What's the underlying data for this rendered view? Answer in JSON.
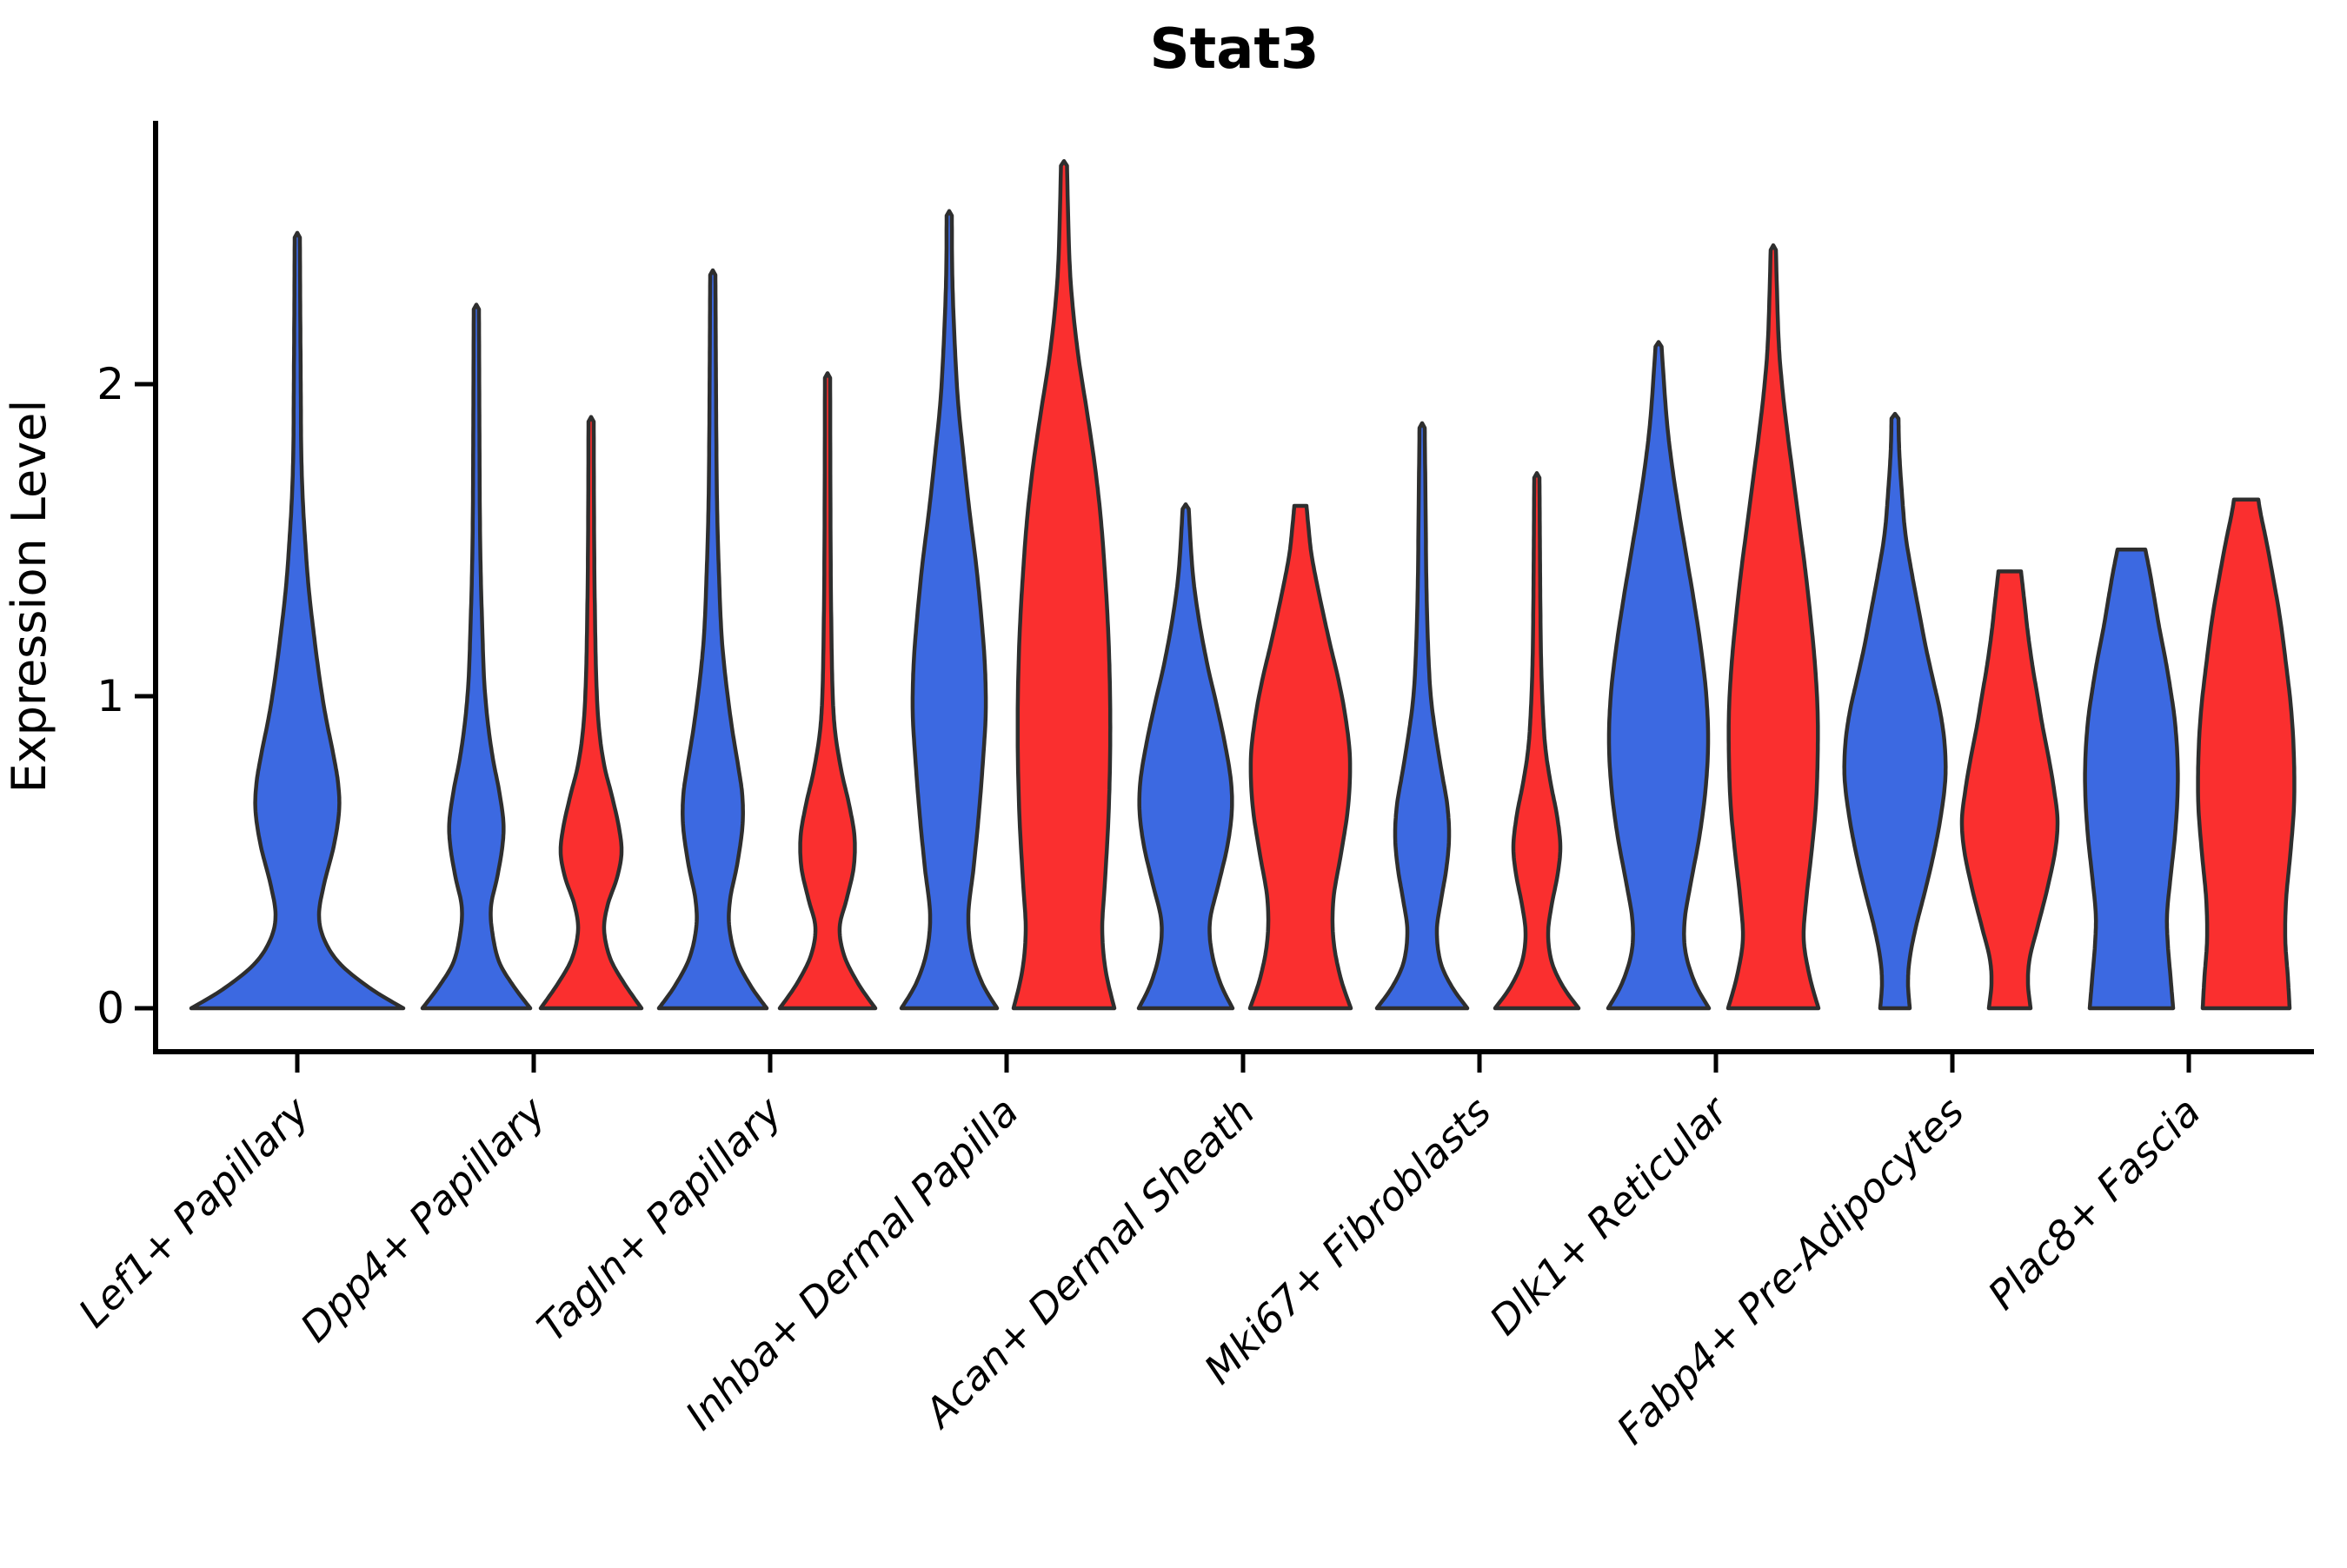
{
  "chart_data": {
    "type": "violin",
    "title": "Stat3",
    "ylabel": "Expression Level",
    "xlabel": "",
    "yticks": [
      "0",
      "1",
      "2"
    ],
    "ytick_values": [
      0,
      1,
      2
    ],
    "ylim": [
      -0.14,
      2.85
    ],
    "grid": false,
    "legend": "none",
    "categories": [
      "Lef1+ Papillary",
      "Dpp4+ Papillary",
      "Tagln+ Papillary",
      "Inhba+ Dermal Papilla",
      "Acan+ Dermal Sheath",
      "Mki67+ Fibroblasts",
      "Dlk1+ Reticular",
      "Fabp4+ Pre-Adipocytes",
      "Plac8+ Fascia"
    ],
    "groups": [
      {
        "name": "blue",
        "color": "#3C69E1"
      },
      {
        "name": "red",
        "color": "#FA2F2F"
      }
    ],
    "outline_color": "#2E2E2E",
    "axis_color": "#000000",
    "note": "profile = [expression_value, half_width_px]; max = violin top expression; dx = horizontal offset from category tick",
    "violins": [
      {
        "category": 0,
        "group": "blue",
        "dx": 0,
        "max": 2.47,
        "profile": [
          [
            0,
            122
          ],
          [
            0.06,
            86
          ],
          [
            0.14,
            50
          ],
          [
            0.22,
            31
          ],
          [
            0.3,
            25
          ],
          [
            0.4,
            31
          ],
          [
            0.52,
            42
          ],
          [
            0.63,
            48
          ],
          [
            0.72,
            47
          ],
          [
            0.82,
            41
          ],
          [
            0.93,
            33
          ],
          [
            1.05,
            26
          ],
          [
            1.2,
            19
          ],
          [
            1.35,
            13
          ],
          [
            1.5,
            9
          ],
          [
            1.65,
            6
          ],
          [
            1.8,
            4.5
          ],
          [
            2.0,
            4
          ],
          [
            2.2,
            3.5
          ],
          [
            2.47,
            3
          ]
        ]
      },
      {
        "category": 1,
        "group": "blue",
        "dx": -66,
        "max": 2.24,
        "profile": [
          [
            0,
            62
          ],
          [
            0.07,
            43
          ],
          [
            0.15,
            26
          ],
          [
            0.25,
            18
          ],
          [
            0.33,
            17
          ],
          [
            0.42,
            24
          ],
          [
            0.52,
            30
          ],
          [
            0.6,
            31
          ],
          [
            0.7,
            26
          ],
          [
            0.8,
            19
          ],
          [
            0.92,
            13
          ],
          [
            1.05,
            9
          ],
          [
            1.2,
            7
          ],
          [
            1.4,
            5
          ],
          [
            1.6,
            4
          ],
          [
            1.9,
            3.5
          ],
          [
            2.24,
            3
          ]
        ]
      },
      {
        "category": 1,
        "group": "red",
        "dx": 66,
        "max": 1.88,
        "profile": [
          [
            0,
            58
          ],
          [
            0.08,
            38
          ],
          [
            0.16,
            22
          ],
          [
            0.25,
            15
          ],
          [
            0.33,
            19
          ],
          [
            0.42,
            30
          ],
          [
            0.5,
            35
          ],
          [
            0.58,
            32
          ],
          [
            0.68,
            24
          ],
          [
            0.78,
            15
          ],
          [
            0.9,
            9
          ],
          [
            1.05,
            6
          ],
          [
            1.25,
            4.5
          ],
          [
            1.5,
            3.5
          ],
          [
            1.88,
            3
          ]
        ]
      },
      {
        "category": 2,
        "group": "blue",
        "dx": -66,
        "max": 2.35,
        "profile": [
          [
            0,
            62
          ],
          [
            0.07,
            44
          ],
          [
            0.16,
            27
          ],
          [
            0.26,
            19
          ],
          [
            0.35,
            20
          ],
          [
            0.46,
            28
          ],
          [
            0.58,
            34
          ],
          [
            0.68,
            34
          ],
          [
            0.78,
            29
          ],
          [
            0.9,
            22
          ],
          [
            1.05,
            15
          ],
          [
            1.2,
            10
          ],
          [
            1.4,
            7
          ],
          [
            1.6,
            5
          ],
          [
            1.85,
            4
          ],
          [
            2.1,
            3.5
          ],
          [
            2.35,
            3
          ]
        ]
      },
      {
        "category": 2,
        "group": "red",
        "dx": 66,
        "max": 2.02,
        "profile": [
          [
            0,
            55
          ],
          [
            0.08,
            35
          ],
          [
            0.17,
            19
          ],
          [
            0.26,
            14
          ],
          [
            0.35,
            22
          ],
          [
            0.45,
            30
          ],
          [
            0.55,
            31
          ],
          [
            0.65,
            25
          ],
          [
            0.76,
            16
          ],
          [
            0.88,
            9
          ],
          [
            1.0,
            6
          ],
          [
            1.2,
            4.5
          ],
          [
            1.5,
            3.5
          ],
          [
            2.02,
            3
          ]
        ]
      },
      {
        "category": 3,
        "group": "blue",
        "dx": -66,
        "max": 2.54,
        "profile": [
          [
            0,
            55
          ],
          [
            0.08,
            38
          ],
          [
            0.18,
            26
          ],
          [
            0.3,
            22
          ],
          [
            0.45,
            28
          ],
          [
            0.62,
            34
          ],
          [
            0.8,
            39
          ],
          [
            0.95,
            42
          ],
          [
            1.1,
            41
          ],
          [
            1.25,
            37
          ],
          [
            1.42,
            31
          ],
          [
            1.6,
            23
          ],
          [
            1.78,
            16
          ],
          [
            1.95,
            10
          ],
          [
            2.15,
            6
          ],
          [
            2.35,
            3.5
          ],
          [
            2.54,
            3
          ]
        ]
      },
      {
        "category": 3,
        "group": "red",
        "dx": 66,
        "max": 2.7,
        "profile": [
          [
            0,
            58
          ],
          [
            0.12,
            48
          ],
          [
            0.25,
            44
          ],
          [
            0.4,
            47
          ],
          [
            0.6,
            51
          ],
          [
            0.8,
            53
          ],
          [
            1.0,
            53
          ],
          [
            1.2,
            51
          ],
          [
            1.4,
            47
          ],
          [
            1.58,
            42
          ],
          [
            1.75,
            35
          ],
          [
            1.92,
            26
          ],
          [
            2.08,
            17
          ],
          [
            2.25,
            10
          ],
          [
            2.42,
            6
          ],
          [
            2.7,
            3.5
          ]
        ]
      },
      {
        "category": 4,
        "group": "blue",
        "dx": -66,
        "max": 1.6,
        "profile": [
          [
            0,
            54
          ],
          [
            0.08,
            40
          ],
          [
            0.18,
            30
          ],
          [
            0.28,
            28
          ],
          [
            0.4,
            38
          ],
          [
            0.52,
            48
          ],
          [
            0.63,
            53
          ],
          [
            0.73,
            52
          ],
          [
            0.85,
            45
          ],
          [
            0.98,
            35
          ],
          [
            1.1,
            25
          ],
          [
            1.25,
            15
          ],
          [
            1.4,
            8
          ],
          [
            1.6,
            3.5
          ]
        ]
      },
      {
        "category": 4,
        "group": "red",
        "dx": 66,
        "max": 1.61,
        "profile": [
          [
            0,
            58
          ],
          [
            0.1,
            46
          ],
          [
            0.22,
            38
          ],
          [
            0.35,
            38
          ],
          [
            0.5,
            47
          ],
          [
            0.65,
            55
          ],
          [
            0.8,
            57
          ],
          [
            0.93,
            52
          ],
          [
            1.05,
            44
          ],
          [
            1.18,
            33
          ],
          [
            1.32,
            22
          ],
          [
            1.45,
            13
          ],
          [
            1.55,
            9
          ],
          [
            1.61,
            7
          ]
        ]
      },
      {
        "category": 5,
        "group": "blue",
        "dx": -66,
        "max": 1.86,
        "profile": [
          [
            0,
            52
          ],
          [
            0.07,
            34
          ],
          [
            0.15,
            21
          ],
          [
            0.25,
            17
          ],
          [
            0.35,
            22
          ],
          [
            0.45,
            28
          ],
          [
            0.55,
            31
          ],
          [
            0.65,
            29
          ],
          [
            0.75,
            23
          ],
          [
            0.87,
            16
          ],
          [
            1.0,
            10
          ],
          [
            1.15,
            7
          ],
          [
            1.35,
            5
          ],
          [
            1.6,
            4
          ],
          [
            1.86,
            3
          ]
        ]
      },
      {
        "category": 5,
        "group": "red",
        "dx": 66,
        "max": 1.7,
        "profile": [
          [
            0,
            48
          ],
          [
            0.07,
            30
          ],
          [
            0.15,
            17
          ],
          [
            0.24,
            13
          ],
          [
            0.33,
            17
          ],
          [
            0.43,
            24
          ],
          [
            0.52,
            27
          ],
          [
            0.62,
            23
          ],
          [
            0.72,
            16
          ],
          [
            0.83,
            10
          ],
          [
            0.95,
            7
          ],
          [
            1.1,
            5
          ],
          [
            1.3,
            4
          ],
          [
            1.5,
            3.5
          ],
          [
            1.7,
            3
          ]
        ]
      },
      {
        "category": 6,
        "group": "blue",
        "dx": -66,
        "max": 2.12,
        "profile": [
          [
            0,
            58
          ],
          [
            0.08,
            42
          ],
          [
            0.18,
            31
          ],
          [
            0.28,
            30
          ],
          [
            0.4,
            37
          ],
          [
            0.55,
            47
          ],
          [
            0.7,
            54
          ],
          [
            0.85,
            57
          ],
          [
            1.0,
            55
          ],
          [
            1.15,
            49
          ],
          [
            1.3,
            41
          ],
          [
            1.45,
            32
          ],
          [
            1.6,
            23
          ],
          [
            1.75,
            15
          ],
          [
            1.9,
            9
          ],
          [
            2.12,
            3.5
          ]
        ]
      },
      {
        "category": 6,
        "group": "red",
        "dx": 66,
        "max": 2.43,
        "profile": [
          [
            0,
            52
          ],
          [
            0.1,
            42
          ],
          [
            0.22,
            35
          ],
          [
            0.35,
            38
          ],
          [
            0.5,
            44
          ],
          [
            0.65,
            49
          ],
          [
            0.8,
            51
          ],
          [
            0.95,
            51
          ],
          [
            1.1,
            48
          ],
          [
            1.25,
            43
          ],
          [
            1.4,
            37
          ],
          [
            1.55,
            30
          ],
          [
            1.7,
            23
          ],
          [
            1.85,
            16
          ],
          [
            2.0,
            10
          ],
          [
            2.15,
            6
          ],
          [
            2.43,
            3
          ]
        ]
      },
      {
        "category": 7,
        "group": "blue",
        "dx": -66,
        "max": 1.89,
        "profile": [
          [
            0,
            17
          ],
          [
            0.08,
            15
          ],
          [
            0.16,
            17
          ],
          [
            0.26,
            24
          ],
          [
            0.38,
            35
          ],
          [
            0.5,
            45
          ],
          [
            0.62,
            53
          ],
          [
            0.74,
            58
          ],
          [
            0.85,
            57
          ],
          [
            0.95,
            52
          ],
          [
            1.05,
            44
          ],
          [
            1.15,
            36
          ],
          [
            1.28,
            27
          ],
          [
            1.4,
            19
          ],
          [
            1.52,
            12
          ],
          [
            1.65,
            8
          ],
          [
            1.78,
            5
          ],
          [
            1.89,
            4
          ]
        ]
      },
      {
        "category": 7,
        "group": "red",
        "dx": 66,
        "max": 1.4,
        "profile": [
          [
            0,
            24
          ],
          [
            0.08,
            21
          ],
          [
            0.16,
            23
          ],
          [
            0.26,
            32
          ],
          [
            0.38,
            43
          ],
          [
            0.5,
            52
          ],
          [
            0.6,
            55
          ],
          [
            0.7,
            51
          ],
          [
            0.8,
            45
          ],
          [
            0.9,
            38
          ],
          [
            1.0,
            32
          ],
          [
            1.1,
            26
          ],
          [
            1.2,
            21
          ],
          [
            1.3,
            17
          ],
          [
            1.4,
            13
          ]
        ]
      },
      {
        "category": 8,
        "group": "blue",
        "dx": -66,
        "max": 1.47,
        "profile": [
          [
            0,
            48
          ],
          [
            0.1,
            45
          ],
          [
            0.2,
            42
          ],
          [
            0.3,
            41
          ],
          [
            0.42,
            45
          ],
          [
            0.55,
            50
          ],
          [
            0.68,
            53
          ],
          [
            0.8,
            53
          ],
          [
            0.92,
            50
          ],
          [
            1.02,
            45
          ],
          [
            1.12,
            39
          ],
          [
            1.22,
            32
          ],
          [
            1.32,
            26
          ],
          [
            1.4,
            21
          ],
          [
            1.47,
            16
          ]
        ]
      },
      {
        "category": 8,
        "group": "red",
        "dx": 66,
        "max": 1.63,
        "profile": [
          [
            0,
            50
          ],
          [
            0.1,
            48
          ],
          [
            0.22,
            45
          ],
          [
            0.35,
            46
          ],
          [
            0.5,
            51
          ],
          [
            0.65,
            55
          ],
          [
            0.8,
            55
          ],
          [
            0.95,
            52
          ],
          [
            1.1,
            46
          ],
          [
            1.25,
            39
          ],
          [
            1.38,
            31
          ],
          [
            1.5,
            23
          ],
          [
            1.58,
            17
          ],
          [
            1.63,
            14
          ]
        ]
      }
    ]
  }
}
